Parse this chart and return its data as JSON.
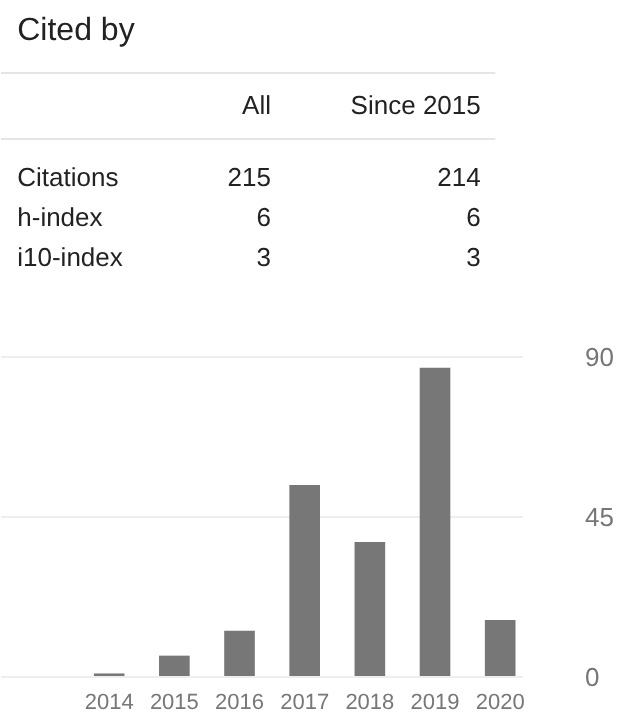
{
  "chart_data": [
    {
      "type": "other",
      "title": "Cited by",
      "annotations": [
        "All",
        "Since 2015",
        "Citations",
        "215",
        "214",
        "h-index",
        "6",
        "6",
        "i10-index",
        "3",
        "3"
      ]
    },
    {
      "type": "bar",
      "categories": [
        "2014",
        "2015",
        "2016",
        "2017",
        "2018",
        "2019",
        "2020"
      ],
      "values": [
        1,
        6,
        13,
        54,
        38,
        87,
        16
      ],
      "color": "#777777",
      "ylim": [
        0,
        90
      ],
      "yticks": [
        0,
        45,
        90
      ],
      "grid": "y"
    }
  ]
}
